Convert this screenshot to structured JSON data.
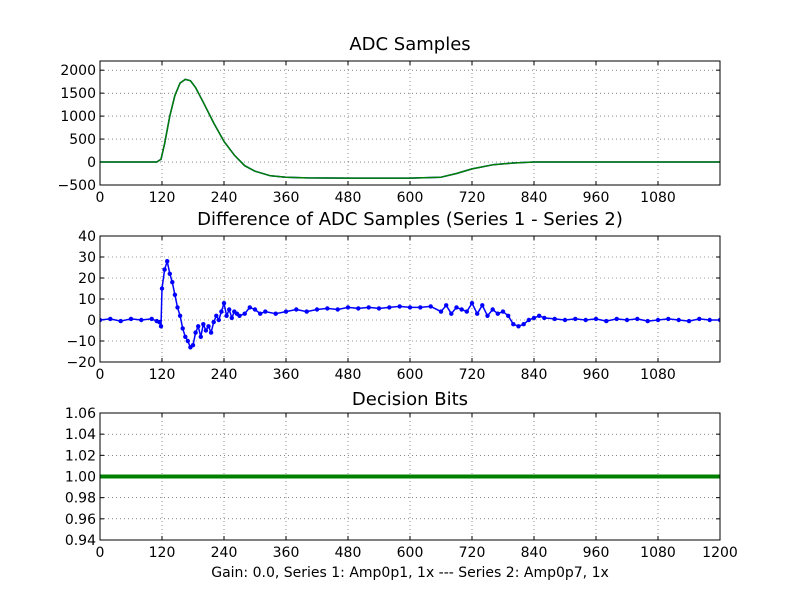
{
  "caption": "Gain: 0.0, Series 1: Amp0p1, 1x --- Series 2: Amp0p7, 1x",
  "chart_data": [
    {
      "type": "line",
      "title": "ADC Samples",
      "xlabel": "",
      "ylabel": "",
      "xlim": [
        0,
        1200
      ],
      "ylim": [
        -500,
        2200
      ],
      "x_ticks": [
        "0",
        "120",
        "240",
        "360",
        "480",
        "600",
        "720",
        "840",
        "960",
        "1080"
      ],
      "y_ticks": [
        "−500",
        "0",
        "500",
        "1000",
        "1500",
        "2000"
      ],
      "y_tick_values": [
        -500,
        0,
        500,
        1000,
        1500,
        2000
      ],
      "grid": true,
      "series": [
        {
          "name": "Series 1",
          "color": "#0000ff",
          "x": [
            0,
            110,
            118,
            125,
            135,
            145,
            155,
            165,
            175,
            185,
            200,
            220,
            240,
            260,
            280,
            300,
            330,
            360,
            400,
            480,
            600,
            660,
            690,
            720,
            760,
            800,
            840,
            960,
            1080,
            1200
          ],
          "y": [
            0,
            0,
            60,
            400,
            1000,
            1450,
            1720,
            1800,
            1770,
            1620,
            1300,
            850,
            450,
            150,
            -80,
            -200,
            -300,
            -330,
            -345,
            -350,
            -350,
            -330,
            -250,
            -150,
            -60,
            -20,
            0,
            0,
            0,
            0
          ]
        },
        {
          "name": "Series 2",
          "color": "#008000",
          "x": [
            0,
            110,
            118,
            125,
            135,
            145,
            155,
            165,
            175,
            185,
            200,
            220,
            240,
            260,
            280,
            300,
            330,
            360,
            400,
            480,
            600,
            660,
            690,
            720,
            760,
            800,
            840,
            960,
            1080,
            1200
          ],
          "y": [
            0,
            0,
            60,
            400,
            1000,
            1450,
            1720,
            1800,
            1770,
            1620,
            1300,
            850,
            450,
            150,
            -80,
            -200,
            -300,
            -330,
            -345,
            -350,
            -350,
            -330,
            -250,
            -150,
            -60,
            -20,
            0,
            0,
            0,
            0
          ]
        }
      ]
    },
    {
      "type": "line",
      "title": "Difference of ADC Samples (Series 1 - Series 2)",
      "xlabel": "",
      "ylabel": "",
      "xlim": [
        0,
        1200
      ],
      "ylim": [
        -20,
        40
      ],
      "x_ticks": [
        "0",
        "120",
        "240",
        "360",
        "480",
        "600",
        "720",
        "840",
        "960",
        "1080"
      ],
      "y_ticks": [
        "−20",
        "−10",
        "0",
        "10",
        "20",
        "30",
        "40"
      ],
      "y_tick_values": [
        -20,
        -10,
        0,
        10,
        20,
        30,
        40
      ],
      "grid": true,
      "series": [
        {
          "name": "Series 1 - Series 2",
          "color": "#0000ff",
          "x": [
            0,
            20,
            40,
            60,
            80,
            100,
            110,
            115,
            118,
            120,
            125,
            130,
            135,
            140,
            145,
            150,
            155,
            160,
            165,
            170,
            175,
            180,
            185,
            190,
            195,
            200,
            205,
            210,
            215,
            220,
            225,
            230,
            235,
            240,
            245,
            250,
            255,
            260,
            265,
            270,
            280,
            290,
            300,
            310,
            320,
            340,
            360,
            380,
            400,
            420,
            440,
            460,
            480,
            500,
            520,
            540,
            560,
            580,
            600,
            620,
            640,
            660,
            670,
            680,
            690,
            700,
            710,
            720,
            730,
            740,
            750,
            760,
            770,
            780,
            790,
            800,
            810,
            820,
            830,
            840,
            850,
            860,
            880,
            900,
            920,
            940,
            960,
            980,
            1000,
            1020,
            1040,
            1060,
            1080,
            1100,
            1120,
            1140,
            1160,
            1180,
            1200
          ],
          "y": [
            0,
            0.5,
            -0.5,
            0.5,
            0,
            0.5,
            -0.5,
            -1,
            -3,
            15,
            24,
            28,
            22,
            18,
            12,
            6,
            2,
            -4,
            -8,
            -10,
            -13,
            -12,
            -6,
            -3,
            -8,
            -2,
            -5,
            -3,
            -6,
            -1,
            2,
            0,
            4,
            8,
            2,
            5,
            1,
            4,
            3,
            2,
            3,
            6,
            5,
            3,
            4,
            3,
            4,
            5,
            4,
            5,
            5.5,
            5,
            6,
            5.5,
            6,
            5.5,
            6,
            6.5,
            6,
            6,
            6.5,
            4,
            7,
            3,
            6,
            5,
            4,
            8,
            3,
            7,
            2,
            5,
            3,
            4,
            2,
            -2,
            -3,
            -2,
            0,
            1,
            2,
            1,
            0.5,
            0,
            0.5,
            0,
            0.5,
            -0.5,
            0.5,
            0,
            0.5,
            -0.5,
            0,
            0.5,
            0,
            -0.5,
            0.5,
            0,
            0
          ]
        }
      ]
    },
    {
      "type": "line",
      "title": "Decision Bits",
      "xlabel": "",
      "ylabel": "",
      "xlim": [
        0,
        1200
      ],
      "ylim": [
        0.94,
        1.06
      ],
      "x_ticks": [
        "0",
        "120",
        "240",
        "360",
        "480",
        "600",
        "720",
        "840",
        "960",
        "1080",
        "1200"
      ],
      "y_ticks": [
        "0.94",
        "0.96",
        "0.98",
        "1.00",
        "1.02",
        "1.04",
        "1.06"
      ],
      "y_tick_values": [
        0.94,
        0.96,
        0.98,
        1.0,
        1.02,
        1.04,
        1.06
      ],
      "grid": true,
      "series": [
        {
          "name": "Decision Bits",
          "color": "#008000",
          "x": [
            0,
            1200
          ],
          "y": [
            1.0,
            1.0
          ]
        }
      ]
    }
  ]
}
